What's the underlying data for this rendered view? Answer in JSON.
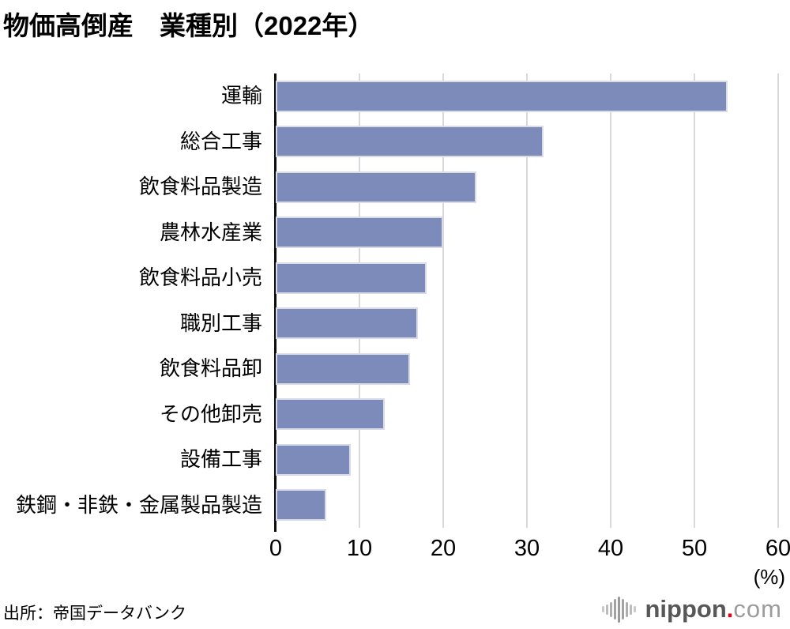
{
  "title": "物価高倒産　業種別（2022年）",
  "source": "出所：帝国データバンク",
  "chart_data": {
    "type": "bar",
    "orientation": "horizontal",
    "title": "物価高倒産　業種別（2022年）",
    "categories": [
      "運輸",
      "総合工事",
      "飲食料品製造",
      "農林水産業",
      "飲食料品小売",
      "職別工事",
      "飲食料品卸",
      "その他卸売",
      "設備工事",
      "鉄鋼・非鉄・金属製品製造"
    ],
    "values": [
      54,
      32,
      24,
      20,
      18,
      17,
      16,
      13,
      9,
      6
    ],
    "xlabel": "(%)",
    "ylabel": "",
    "xlim": [
      0,
      60
    ],
    "xticks": [
      0,
      10,
      20,
      30,
      40,
      50,
      60
    ],
    "grid": true,
    "legend": false,
    "bar_color": "#7c8bba",
    "bar_border_color": "#d9dbe7",
    "gridline_color": "#d9d9d9",
    "axis_color": "#0d0d0d"
  },
  "logo": {
    "name": "nippon.com",
    "text_main": "nippon",
    "text_dot": ".",
    "text_suffix": "com",
    "main_color": "#575757",
    "dot_color": "#e60012",
    "suffix_color": "#9c9c9d"
  }
}
